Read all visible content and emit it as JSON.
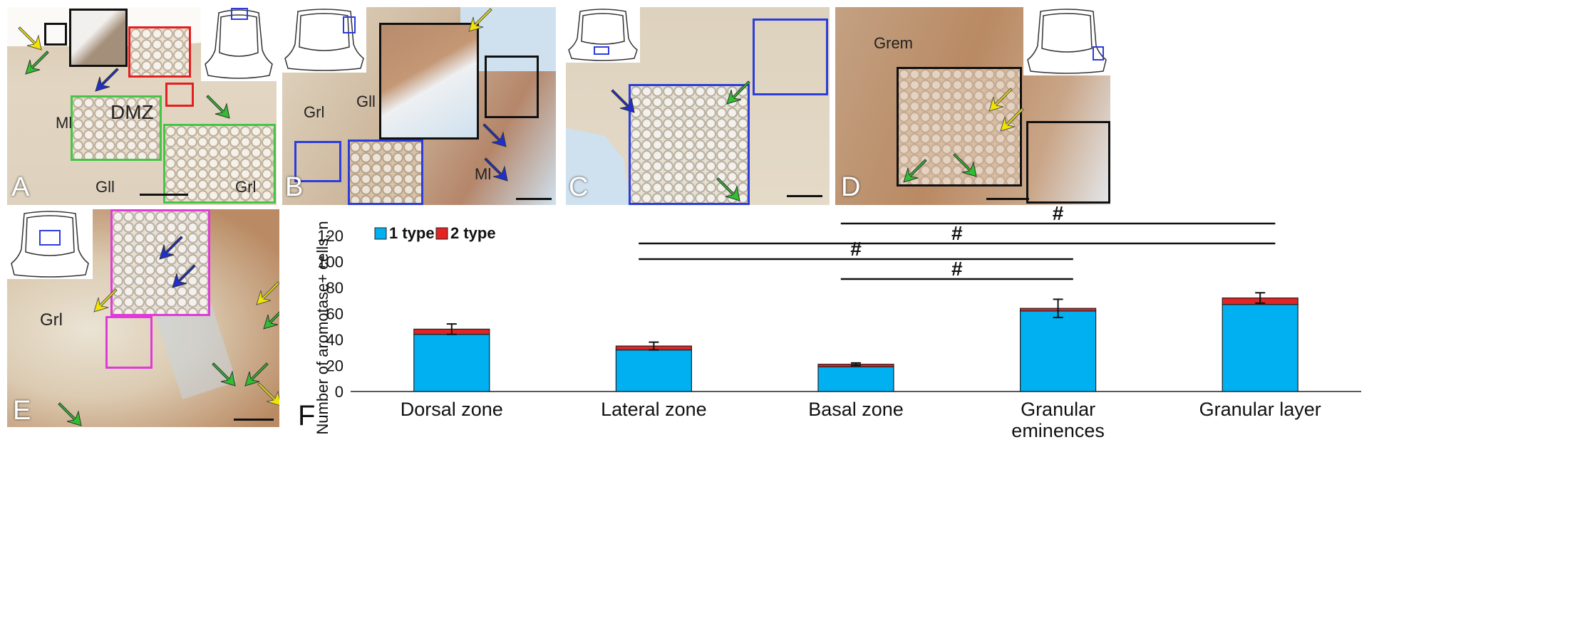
{
  "colors": {
    "tissue_light": "#e6dcc9",
    "tissue_brown": "#b98a63",
    "sky": "#cfe1ee",
    "type1": "#00b0f0",
    "type2": "#e32424",
    "yellow_arrow": "#f2e400",
    "green_arrow": "#2fbf2f",
    "blue_arrow": "#1f2fd0",
    "box_black": "#111111",
    "box_red": "#e41f1f",
    "box_green": "#45c545",
    "box_blue": "#2c3ddb",
    "box_magenta": "#e03ad9"
  },
  "panels": {
    "A": {
      "label": "A",
      "texts": {
        "dmz": "DMZ",
        "ml": "Ml",
        "gll": "Gll",
        "grl": "Grl"
      }
    },
    "B": {
      "label": "B",
      "texts": {
        "grl": "Grl",
        "gll": "Gll",
        "ml": "Ml"
      }
    },
    "C": {
      "label": "C"
    },
    "D": {
      "label": "D",
      "texts": {
        "grem": "Grem"
      }
    },
    "E": {
      "label": "E",
      "texts": {
        "grl": "Grl"
      }
    },
    "F": {
      "label": "F"
    }
  },
  "chart_data": {
    "type": "bar",
    "stacked": true,
    "categories": [
      "Dorsal zone",
      "Lateral zone",
      "Basal zone",
      "Granular eminences",
      "Granular layer"
    ],
    "category_lines": [
      [
        "Dorsal zone"
      ],
      [
        "Lateral zone"
      ],
      [
        "Basal zone"
      ],
      [
        "Granular",
        "eminences"
      ],
      [
        "Granular layer"
      ]
    ],
    "series": [
      {
        "name": "1 type",
        "color": "#00b0f0",
        "values": [
          44,
          32,
          19,
          62,
          67
        ]
      },
      {
        "name": "2 type",
        "color": "#e32424",
        "values": [
          4,
          3,
          2,
          2,
          5
        ]
      }
    ],
    "error": [
      4,
      3,
      1,
      7,
      4
    ],
    "ylabel": "Number of aromotase+ cells, n",
    "ylim": [
      0,
      120
    ],
    "yticks": [
      0,
      20,
      40,
      60,
      80,
      100,
      120
    ],
    "significance": [
      {
        "from": "Basal zone",
        "to": "Granular layer",
        "label": "#"
      },
      {
        "from": "Lateral zone",
        "to": "Granular layer",
        "label": "#"
      },
      {
        "from": "Lateral zone",
        "to": "Granular eminences",
        "label": "#"
      },
      {
        "from": "Basal zone",
        "to": "Granular eminences",
        "label": "#"
      }
    ]
  }
}
